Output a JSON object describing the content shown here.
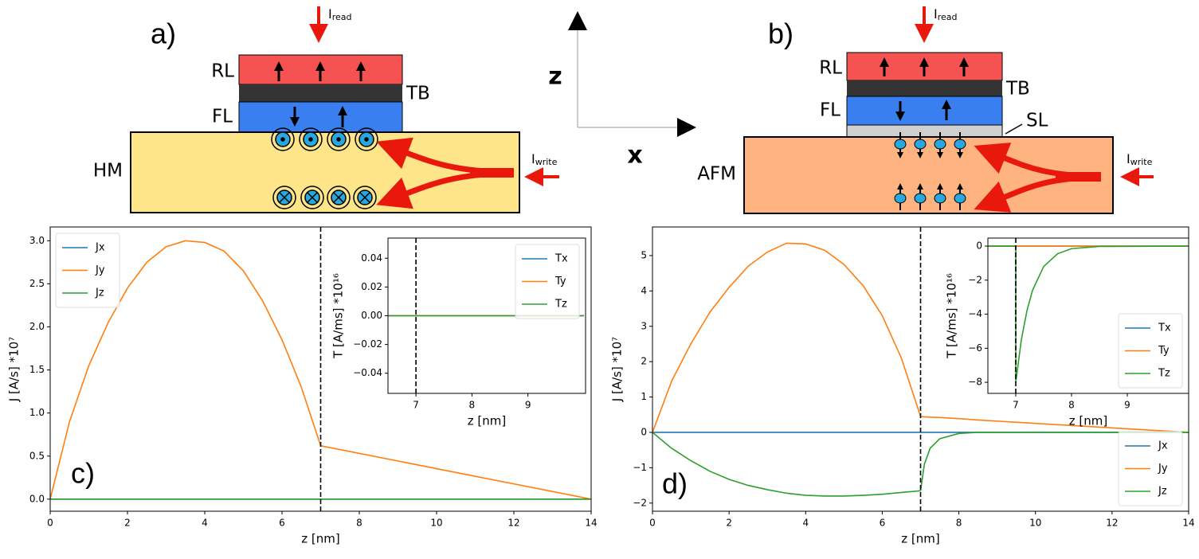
{
  "diagrams": {
    "a": {
      "label": "a)",
      "read_main": "I",
      "read_sub": "read",
      "write_main": "I",
      "write_sub": "write",
      "rl": "RL",
      "tb": "TB",
      "fl": "FL",
      "substrate": "HM"
    },
    "b": {
      "label": "b)",
      "read_main": "I",
      "read_sub": "read",
      "write_main": "I",
      "write_sub": "write",
      "rl": "RL",
      "tb": "TB",
      "fl": "FL",
      "sl": "SL",
      "substrate": "AFM"
    },
    "axes": {
      "z": "z",
      "x": "x"
    }
  },
  "chart_data": [
    {
      "type": "line",
      "panel_label": "c)",
      "xlabel": "z [nm]",
      "ylabel": "J [A/s] *10⁷",
      "xlim": [
        0,
        14
      ],
      "ylim": [
        -0.14,
        3.16
      ],
      "xticks": [
        0,
        2,
        4,
        6,
        8,
        10,
        12,
        14
      ],
      "yticks": [
        {
          "value": 0,
          "label": "0.0"
        },
        {
          "value": 0.5,
          "label": "0.5"
        },
        {
          "value": 1,
          "label": "1.0"
        },
        {
          "value": 1.5,
          "label": "1.5"
        },
        {
          "value": 2,
          "label": "2.0"
        },
        {
          "value": 2.5,
          "label": "2.5"
        },
        {
          "value": 3,
          "label": "3.0"
        }
      ],
      "vline": 7,
      "legend": "upper left",
      "x": [
        0,
        0.5,
        1,
        1.5,
        2,
        2.5,
        3,
        3.5,
        4,
        4.5,
        5,
        5.5,
        6,
        6.5,
        7,
        14
      ],
      "series": [
        {
          "name": "Jx",
          "color": "#1f77b4",
          "values": [
            0,
            0,
            0,
            0,
            0,
            0,
            0,
            0,
            0,
            0,
            0,
            0,
            0,
            0,
            0,
            0
          ]
        },
        {
          "name": "Jy",
          "color": "#ff7f0e",
          "values": [
            0,
            0.9,
            1.55,
            2.05,
            2.45,
            2.75,
            2.93,
            3.0,
            2.98,
            2.88,
            2.65,
            2.3,
            1.85,
            1.3,
            0.62,
            0
          ]
        },
        {
          "name": "Jz",
          "color": "#2ca02c",
          "values": [
            0,
            0,
            0,
            0,
            0,
            0,
            0,
            0,
            0,
            0,
            0,
            0,
            0,
            0,
            0,
            0
          ]
        }
      ]
    },
    {
      "type": "line",
      "xlabel": "z [nm]",
      "ylabel": "T [A/ms] *10¹⁶",
      "xlim": [
        6.5,
        10.03
      ],
      "ylim": [
        -0.054,
        0.054
      ],
      "xticks": [
        7,
        8,
        9
      ],
      "yticks": [
        {
          "value": -0.04,
          "label": "−0.04"
        },
        {
          "value": -0.02,
          "label": "−0.02"
        },
        {
          "value": 0,
          "label": "0.00"
        },
        {
          "value": 0.02,
          "label": "0.02"
        },
        {
          "value": 0.04,
          "label": "0.04"
        }
      ],
      "vline": 7,
      "legend": "upper right",
      "x": [
        6.5,
        10
      ],
      "series": [
        {
          "name": "Tx",
          "color": "#1f77b4",
          "values": [
            0,
            0
          ]
        },
        {
          "name": "Ty",
          "color": "#ff7f0e",
          "values": [
            0,
            0
          ]
        },
        {
          "name": "Tz",
          "color": "#2ca02c",
          "values": [
            0,
            0
          ]
        }
      ]
    },
    {
      "type": "line",
      "panel_label": "d)",
      "xlabel": "z [nm]",
      "ylabel": "J [A/s] *10⁷",
      "xlim": [
        0,
        14
      ],
      "ylim": [
        -2.23,
        5.81
      ],
      "xticks": [
        0,
        2,
        4,
        6,
        8,
        10,
        12,
        14
      ],
      "yticks": [
        {
          "value": -2,
          "label": "−2"
        },
        {
          "value": -1,
          "label": "−1"
        },
        0,
        1,
        2,
        3,
        4,
        5
      ],
      "vline": 7,
      "legend": "lower right",
      "x": [
        0,
        0.5,
        1,
        1.5,
        2,
        2.5,
        3,
        3.5,
        4,
        4.5,
        5,
        5.5,
        6,
        6.5,
        7,
        7.1,
        7.25,
        7.5,
        8,
        8.5,
        14
      ],
      "series": [
        {
          "name": "Jx",
          "color": "#1f77b4",
          "values": [
            0,
            0,
            0,
            0,
            0,
            0,
            0,
            0,
            0,
            0,
            0,
            0,
            0,
            0,
            0,
            0,
            0,
            0,
            0,
            0,
            0
          ]
        },
        {
          "name": "Jy",
          "color": "#ff7f0e",
          "values": [
            0,
            1.45,
            2.5,
            3.4,
            4.1,
            4.7,
            5.1,
            5.35,
            5.33,
            5.15,
            4.75,
            4.15,
            3.3,
            2.1,
            0.45,
            0.44,
            0.43,
            0.42,
            0.39,
            0.35,
            0
          ]
        },
        {
          "name": "Jz",
          "color": "#2ca02c",
          "values": [
            0,
            -0.45,
            -0.8,
            -1.1,
            -1.33,
            -1.5,
            -1.62,
            -1.72,
            -1.78,
            -1.8,
            -1.8,
            -1.78,
            -1.75,
            -1.7,
            -1.65,
            -0.9,
            -0.45,
            -0.18,
            -0.03,
            0,
            0
          ]
        }
      ]
    },
    {
      "type": "line",
      "xlabel": "z [nm]",
      "ylabel": "T [A/ms] *10¹⁶",
      "xlim": [
        6.5,
        10.1
      ],
      "ylim": [
        -8.65,
        0.47
      ],
      "xticks": [
        7,
        8,
        9
      ],
      "yticks": [
        {
          "value": -8,
          "label": "−8"
        },
        {
          "value": -6,
          "label": "−6"
        },
        {
          "value": -4,
          "label": "−4"
        },
        {
          "value": -2,
          "label": "−2"
        },
        0
      ],
      "vline": 7,
      "legend": "lower right",
      "x": [
        6.5,
        7,
        7,
        7.1,
        7.2,
        7.3,
        7.5,
        7.75,
        8,
        8.5,
        10.1
      ],
      "series": [
        {
          "name": "Tx",
          "color": "#1f77b4",
          "values": [
            0,
            0,
            0,
            0,
            0,
            0,
            0,
            0,
            0,
            0,
            0
          ]
        },
        {
          "name": "Ty",
          "color": "#ff7f0e",
          "values": [
            0,
            0,
            0,
            0,
            0,
            0,
            0,
            0,
            0,
            0,
            0
          ]
        },
        {
          "name": "Tz",
          "color": "#2ca02c",
          "values": [
            0,
            0,
            -8,
            -5.5,
            -3.8,
            -2.6,
            -1.2,
            -0.45,
            -0.15,
            -0.02,
            0
          ]
        }
      ]
    }
  ]
}
